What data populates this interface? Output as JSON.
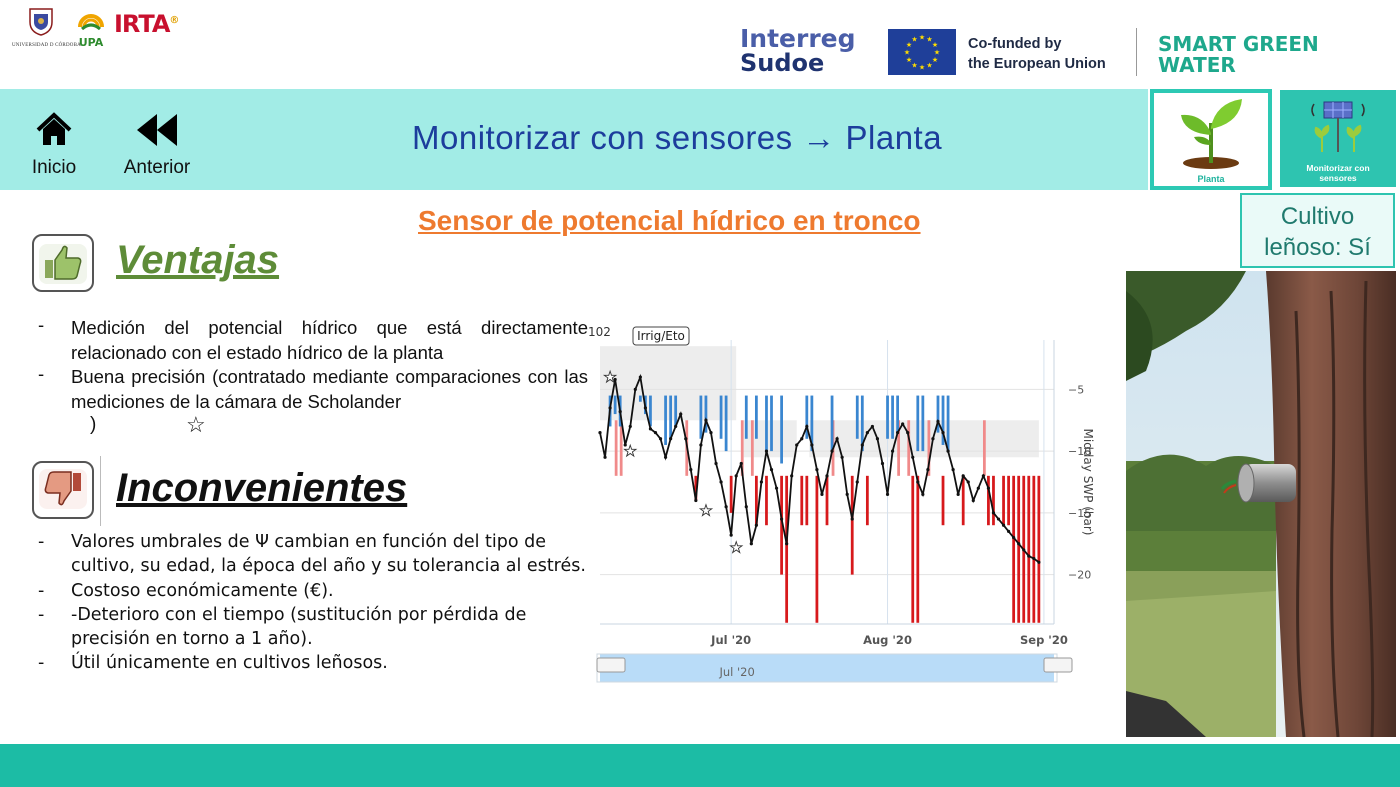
{
  "logos": {
    "uco_name": "UNIVERSIDAD D CÓRDOBA",
    "upa": "UPA",
    "irta": "IRTA",
    "irta_sup": "®",
    "interreg_line1": "Interreg",
    "interreg_line2": "Sudoe",
    "eu_line1": "Co-funded by",
    "eu_line2": "the European Union",
    "sgw_line1": "SMART GREEN",
    "sgw_line2": "WATER"
  },
  "nav": {
    "home_label": "Inicio",
    "back_label": "Anterior",
    "title": "Monitorizar  con  sensores  →  Planta"
  },
  "cards": {
    "planta_label": "Planta",
    "monit_label_1": "Monitorizar  con",
    "monit_label_2": "sensores"
  },
  "cultivo": {
    "line1": "Cultivo",
    "line2": "leñoso:  Sí"
  },
  "sensor_title": "Sensor de potencial hídrico en tronco",
  "ventajas": {
    "heading": "Ventajas",
    "items": [
      "Medición del potencial hídrico  que está directamente relacionado con el estado hídrico de la planta",
      "Buena precisión (contratado mediante comparaciones con las mediciones de la cámara de Scholander"
    ],
    "paren": ")",
    "star": "☆"
  },
  "inconvenientes": {
    "heading": "Inconvenientes",
    "items": [
      "Valores umbrales de Ψ cambian en función del tipo de cultivo, su edad, la época del año y su tolerancia al estrés.",
      "Costoso económicamente (€).",
      "-Deterioro con el tiempo (sustitución por pérdida de precisión en torno a 1 año).",
      "Útil únicamente en cultivos leñosos."
    ]
  },
  "colors": {
    "nav_band": "#a2ece6",
    "teal": "#1cbca5",
    "title_blue": "#1c3d9c",
    "orange": "#ee7a2f",
    "green": "#5e8c38",
    "bar_red": "#d7191c",
    "bar_blue": "#3a86d0",
    "line_black": "#111111"
  },
  "chart_data": {
    "type": "line",
    "legend_button": "Irrig/Eto",
    "left_label": "102",
    "ylabel": "Midday SWP (bar)",
    "ylim": [
      -24,
      -1
    ],
    "yticks": [
      -5,
      -10,
      -15,
      -20
    ],
    "xticks": [
      "Jul '20",
      "Aug '20",
      "Sep '20"
    ],
    "xtick_days": [
      26,
      57,
      88
    ],
    "xlim": [
      0,
      90
    ],
    "navigator_label": "Jul '20",
    "threshold_bands": [
      {
        "x": [
          0,
          27
        ],
        "upper": -1.5,
        "lower": -7.5
      },
      {
        "x": [
          28.5,
          39
        ],
        "upper": -7.5,
        "lower": -10.5
      },
      {
        "x": [
          41.5,
          87
        ],
        "upper": -7.5,
        "lower": -10.5
      }
    ],
    "x": [
      0,
      1,
      2,
      3,
      4,
      5,
      6,
      7,
      8,
      9,
      10,
      11,
      12,
      13,
      14,
      15,
      16,
      17,
      18,
      19,
      20,
      21,
      22,
      23,
      24,
      25,
      26,
      27,
      28,
      29,
      30,
      31,
      32,
      33,
      34,
      35,
      36,
      37,
      38,
      39,
      40,
      41,
      42,
      43,
      44,
      45,
      46,
      47,
      48,
      49,
      50,
      51,
      52,
      53,
      54,
      55,
      56,
      57,
      58,
      59,
      60,
      61,
      62,
      63,
      64,
      65,
      66,
      67,
      68,
      69,
      70,
      71,
      72,
      73,
      74,
      75,
      76,
      77,
      78,
      79,
      80,
      81,
      82,
      83,
      84,
      85,
      86,
      87
    ],
    "y": [
      -8.5,
      -10.5,
      -6.5,
      -4.2,
      -6.8,
      -9.5,
      -8.0,
      -5.0,
      -4.0,
      -6.5,
      -8.2,
      -8.5,
      -9.0,
      -10.5,
      -9.0,
      -8.0,
      -7.0,
      -9.0,
      -11.5,
      -14.0,
      -9.5,
      -7.5,
      -8.5,
      -11.0,
      -12.5,
      -14.5,
      -16.8,
      -12.0,
      -11.0,
      -14.5,
      -17.5,
      -16.0,
      -12.5,
      -10.0,
      -11.5,
      -13.0,
      -15.5,
      -17.5,
      -12.0,
      -9.5,
      -9.0,
      -8.0,
      -9.5,
      -11.5,
      -13.5,
      -12.0,
      -10.0,
      -9.0,
      -10.5,
      -13.5,
      -15.5,
      -12.5,
      -9.5,
      -8.5,
      -8.0,
      -9.0,
      -11.0,
      -13.5,
      -10.0,
      -8.5,
      -7.8,
      -8.5,
      -10.5,
      -12.5,
      -13.5,
      -11.5,
      -9.0,
      -7.6,
      -8.5,
      -10.0,
      -11.5,
      -13.5,
      -12.0,
      -12.5,
      -14.0,
      -13.0,
      -12.0,
      -13.0,
      -15.0,
      -15.5,
      -16.0,
      -16.5,
      -17.0,
      -17.5,
      -18.0,
      -18.5,
      -18.7,
      -19.0
    ],
    "red_bars": [
      [
        0,
        -11
      ],
      [
        1,
        -11
      ],
      [
        5,
        -11
      ],
      [
        6,
        -12
      ],
      [
        16,
        -12
      ],
      [
        17,
        -12
      ],
      [
        19,
        -14
      ],
      [
        22,
        -12
      ],
      [
        23,
        -12
      ],
      [
        26,
        -15
      ],
      [
        29,
        -12
      ],
      [
        30,
        -12
      ],
      [
        31,
        -16
      ],
      [
        33,
        -16
      ],
      [
        36,
        -20
      ],
      [
        37,
        -23.9
      ],
      [
        40,
        -16
      ],
      [
        41,
        -16
      ],
      [
        43,
        -23.9
      ],
      [
        45,
        -16
      ],
      [
        47,
        -12
      ],
      [
        48,
        -12
      ],
      [
        50,
        -20
      ],
      [
        53,
        -16
      ],
      [
        55,
        -12
      ],
      [
        56,
        -12
      ],
      [
        62,
        -23.9
      ],
      [
        63,
        -23.9
      ],
      [
        68,
        -16
      ],
      [
        71,
        -12
      ],
      [
        72,
        -16
      ],
      [
        73,
        -12
      ],
      [
        77,
        -16
      ],
      [
        78,
        -16
      ],
      [
        80,
        -16
      ],
      [
        81,
        -16
      ],
      [
        82,
        -23.9
      ],
      [
        83,
        -23.9
      ],
      [
        84,
        -23.9
      ],
      [
        85,
        -23.9
      ],
      [
        86,
        -23.9
      ],
      [
        87,
        -23.9
      ]
    ],
    "blue_bars": [
      [
        2,
        -8
      ],
      [
        3,
        -7
      ],
      [
        4,
        -8
      ],
      [
        8,
        -6
      ],
      [
        9,
        -7
      ],
      [
        10,
        -8
      ],
      [
        13,
        -9.5
      ],
      [
        14,
        -9
      ],
      [
        15,
        -8
      ],
      [
        20,
        -9
      ],
      [
        21,
        -8.5
      ],
      [
        24,
        -9
      ],
      [
        25,
        -10
      ],
      [
        29,
        -9
      ],
      [
        31,
        -9
      ],
      [
        33,
        -10
      ],
      [
        34,
        -10
      ],
      [
        36,
        -11
      ],
      [
        41,
        -9
      ],
      [
        42,
        -10
      ],
      [
        46,
        -10
      ],
      [
        51,
        -9
      ],
      [
        52,
        -10
      ],
      [
        57,
        -9
      ],
      [
        58,
        -9
      ],
      [
        59,
        -8.5
      ],
      [
        63,
        -10
      ],
      [
        64,
        -10
      ],
      [
        67,
        -8.5
      ],
      [
        68,
        -9.5
      ],
      [
        69,
        -10
      ]
    ],
    "pink_bars": [
      [
        3,
        -9
      ],
      [
        4,
        -9
      ],
      [
        17,
        -10
      ],
      [
        28,
        -10
      ],
      [
        30,
        -9.5
      ],
      [
        46,
        -9
      ],
      [
        59,
        -9
      ],
      [
        61,
        -9
      ],
      [
        65,
        -10
      ],
      [
        76,
        -8
      ]
    ],
    "stars": [
      [
        2,
        -4.0
      ],
      [
        6,
        -10.0
      ],
      [
        21,
        -14.8
      ],
      [
        27,
        -17.8
      ]
    ]
  }
}
